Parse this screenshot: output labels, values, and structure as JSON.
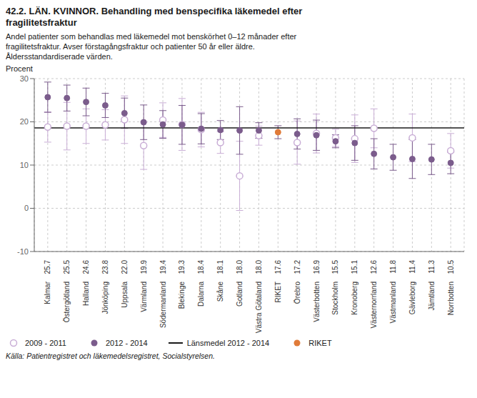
{
  "chart_data": {
    "type": "scatter",
    "title": "42.2. LÄN. KVINNOR. Behandling med benspecifika läkemedel efter\nfragilitetsfraktur",
    "subtitle": "Andel patienter som behandlas med läkemedel mot benskörhet 0–12 månader efter\nfragilitetsfraktur. Avser förstagångsfraktur och patienter 50 år eller äldre.\nÅldersstandardiserade värden.",
    "ylabel": "Procent",
    "source": "Källa: Patientregistret och läkemedelsregistret, Socialstyrelsen.",
    "categories": [
      "Kalmar",
      "Östergötland",
      "Halland",
      "Jönköping",
      "Uppsala",
      "Värmland",
      "Södermanland",
      "Blekinge",
      "Dalarna",
      "Skåne",
      "Gotland",
      "Västra Götaland",
      "RIKET",
      "Örebro",
      "Västerbotten",
      "Stockholm",
      "Kronoberg",
      "Västernorrland",
      "Västmanland",
      "Gävleborg",
      "Jämtland",
      "Norrbotten"
    ],
    "ylim": [
      -10,
      30
    ],
    "yticks": [
      -10,
      0,
      10,
      20,
      30
    ],
    "grid": true,
    "series": [
      {
        "name": "2009 - 2011",
        "color": "#c9aed6",
        "marker": "open_circle",
        "values": [
          18.8,
          19.0,
          19.0,
          19.3,
          20.5,
          14.5,
          20.4,
          19.4,
          18.2,
          15.2,
          7.5,
          16.8,
          null,
          15.2,
          17.3,
          16.3,
          16.1,
          18.5,
          null,
          16.3,
          null,
          13.3
        ],
        "errors_low": [
          3.5,
          5.5,
          4.0,
          3.5,
          5.5,
          5.5,
          4.0,
          6.0,
          4.0,
          2.5,
          8.0,
          2.2,
          null,
          5.0,
          4.5,
          2.0,
          5.5,
          4.5,
          null,
          5.5,
          null,
          4.0
        ],
        "errors_high": [
          3.5,
          5.5,
          4.0,
          3.5,
          5.5,
          5.5,
          4.0,
          6.0,
          4.0,
          2.5,
          8.0,
          2.2,
          null,
          5.0,
          4.5,
          2.0,
          5.5,
          4.5,
          null,
          5.5,
          null,
          4.0
        ]
      },
      {
        "name": "2012 - 2014",
        "color": "#7b5c8c",
        "marker": "circle",
        "data_labels": true,
        "values": [
          25.7,
          25.5,
          24.6,
          23.8,
          22.0,
          19.9,
          19.4,
          19.3,
          18.4,
          18.1,
          18.0,
          18.0,
          17.6,
          17.2,
          16.9,
          15.5,
          15.1,
          12.6,
          11.8,
          11.4,
          11.3,
          10.5
        ],
        "value_labels": [
          "25.7",
          "25.5",
          "24.6",
          "23.8",
          "22.0",
          "19.9",
          "19.4",
          "19.3",
          "18.4",
          "18.1",
          "18.0",
          "18.0",
          "17.6",
          "17.2",
          "16.9",
          "15.5",
          "15.1",
          "12.6",
          "11.8",
          "11.4",
          "11.3",
          "10.5"
        ],
        "errors_low": [
          3.5,
          3.0,
          3.2,
          2.8,
          3.5,
          4.0,
          3.2,
          4.5,
          3.5,
          2.2,
          5.5,
          1.8,
          1.5,
          3.5,
          3.5,
          1.5,
          4.0,
          3.5,
          3.0,
          4.5,
          3.5,
          2.5
        ],
        "errors_high": [
          3.5,
          3.0,
          3.2,
          2.8,
          3.5,
          4.0,
          3.2,
          4.5,
          3.5,
          2.2,
          5.5,
          1.8,
          1.5,
          3.5,
          3.5,
          1.5,
          4.0,
          3.5,
          3.0,
          4.5,
          3.5,
          2.5
        ]
      }
    ],
    "reference_lines": [
      {
        "name": "Länsmedel 2012 - 2014",
        "value": 18.6,
        "color": "#1a1a1a"
      }
    ],
    "highlight": {
      "name": "RIKET",
      "category": "RIKET",
      "color": "#e07b39"
    }
  }
}
